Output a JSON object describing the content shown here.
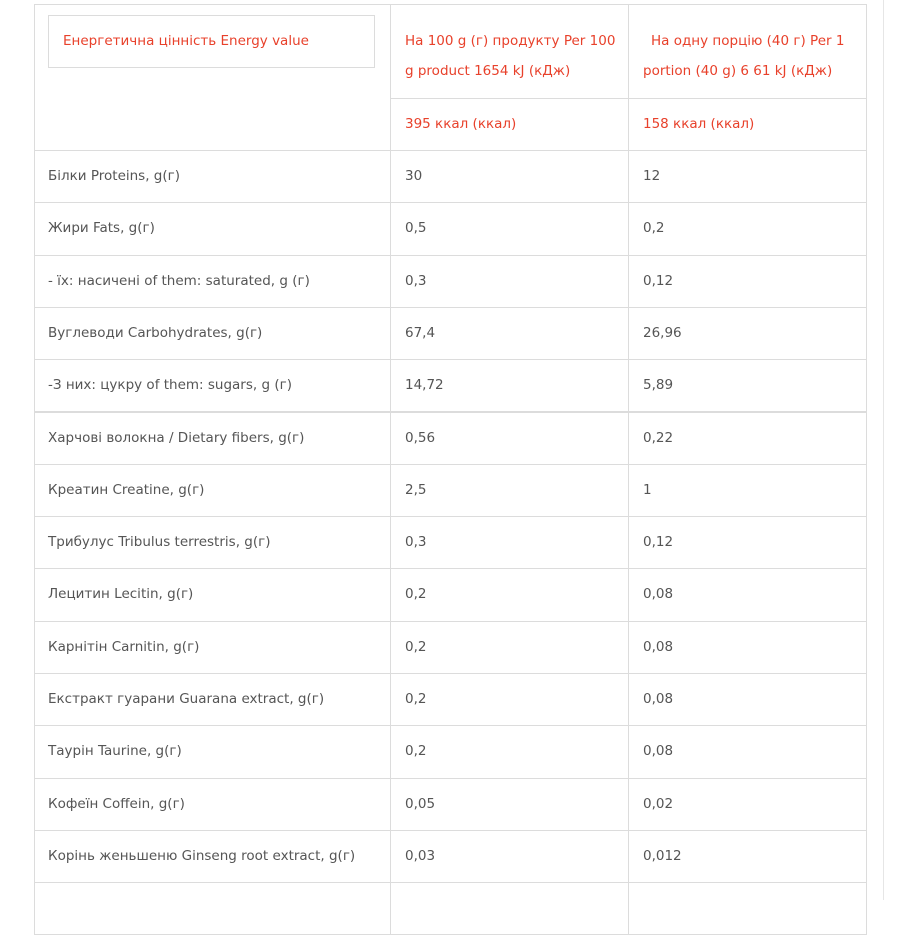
{
  "table": {
    "header": {
      "energy_label": "Енергетична цінність Energy value",
      "per_100g": "На 100 g (г) продукту Per 100 g product 1654 kJ (кДж)",
      "per_portion": "На одну порцію (40 г) Per 1 portion (40 g) 6 61 kJ (кДж)",
      "kcal_100g": "395 ккал (ккал)",
      "kcal_portion": "158 ккал (ккал)"
    },
    "rows": [
      [
        "Білки Proteins, g(г)",
        "30",
        "12"
      ],
      [
        "Жири Fats, g(г)",
        "0,5",
        "0,2"
      ],
      [
        "- їх: насичені of them: saturated, g (г)",
        "0,3",
        "0,12"
      ],
      [
        "Вуглеводи Carbohydrates, g(г)",
        "67,4",
        "26,96"
      ],
      [
        "-З них: цукру of them: sugars, g (г)",
        "14,72",
        "5,89"
      ],
      [
        "Харчові волокна / Dietary fibers, g(г)",
        "0,56",
        "0,22"
      ],
      [
        "Креатин Creatine, g(г)",
        "2,5",
        "1"
      ],
      [
        "Трибулус Tribulus terrestris, g(г)",
        "0,3",
        "0,12"
      ],
      [
        "Лецитин Lecitin, g(г)",
        "0,2",
        "0,08"
      ],
      [
        "Карнітін Carnitin, g(г)",
        "0,2",
        "0,08"
      ],
      [
        "Екстракт гуарани Guarana extract, g(г)",
        "0,2",
        "0,08"
      ],
      [
        "Таурін Taurine, g(г)",
        "0,2",
        "0,08"
      ],
      [
        "Кофеїн Coffein, g(г)",
        "0,05",
        "0,02"
      ],
      [
        "Корінь женьшеню Ginseng root extract, g(г)",
        "0,03",
        "0,012"
      ]
    ]
  }
}
